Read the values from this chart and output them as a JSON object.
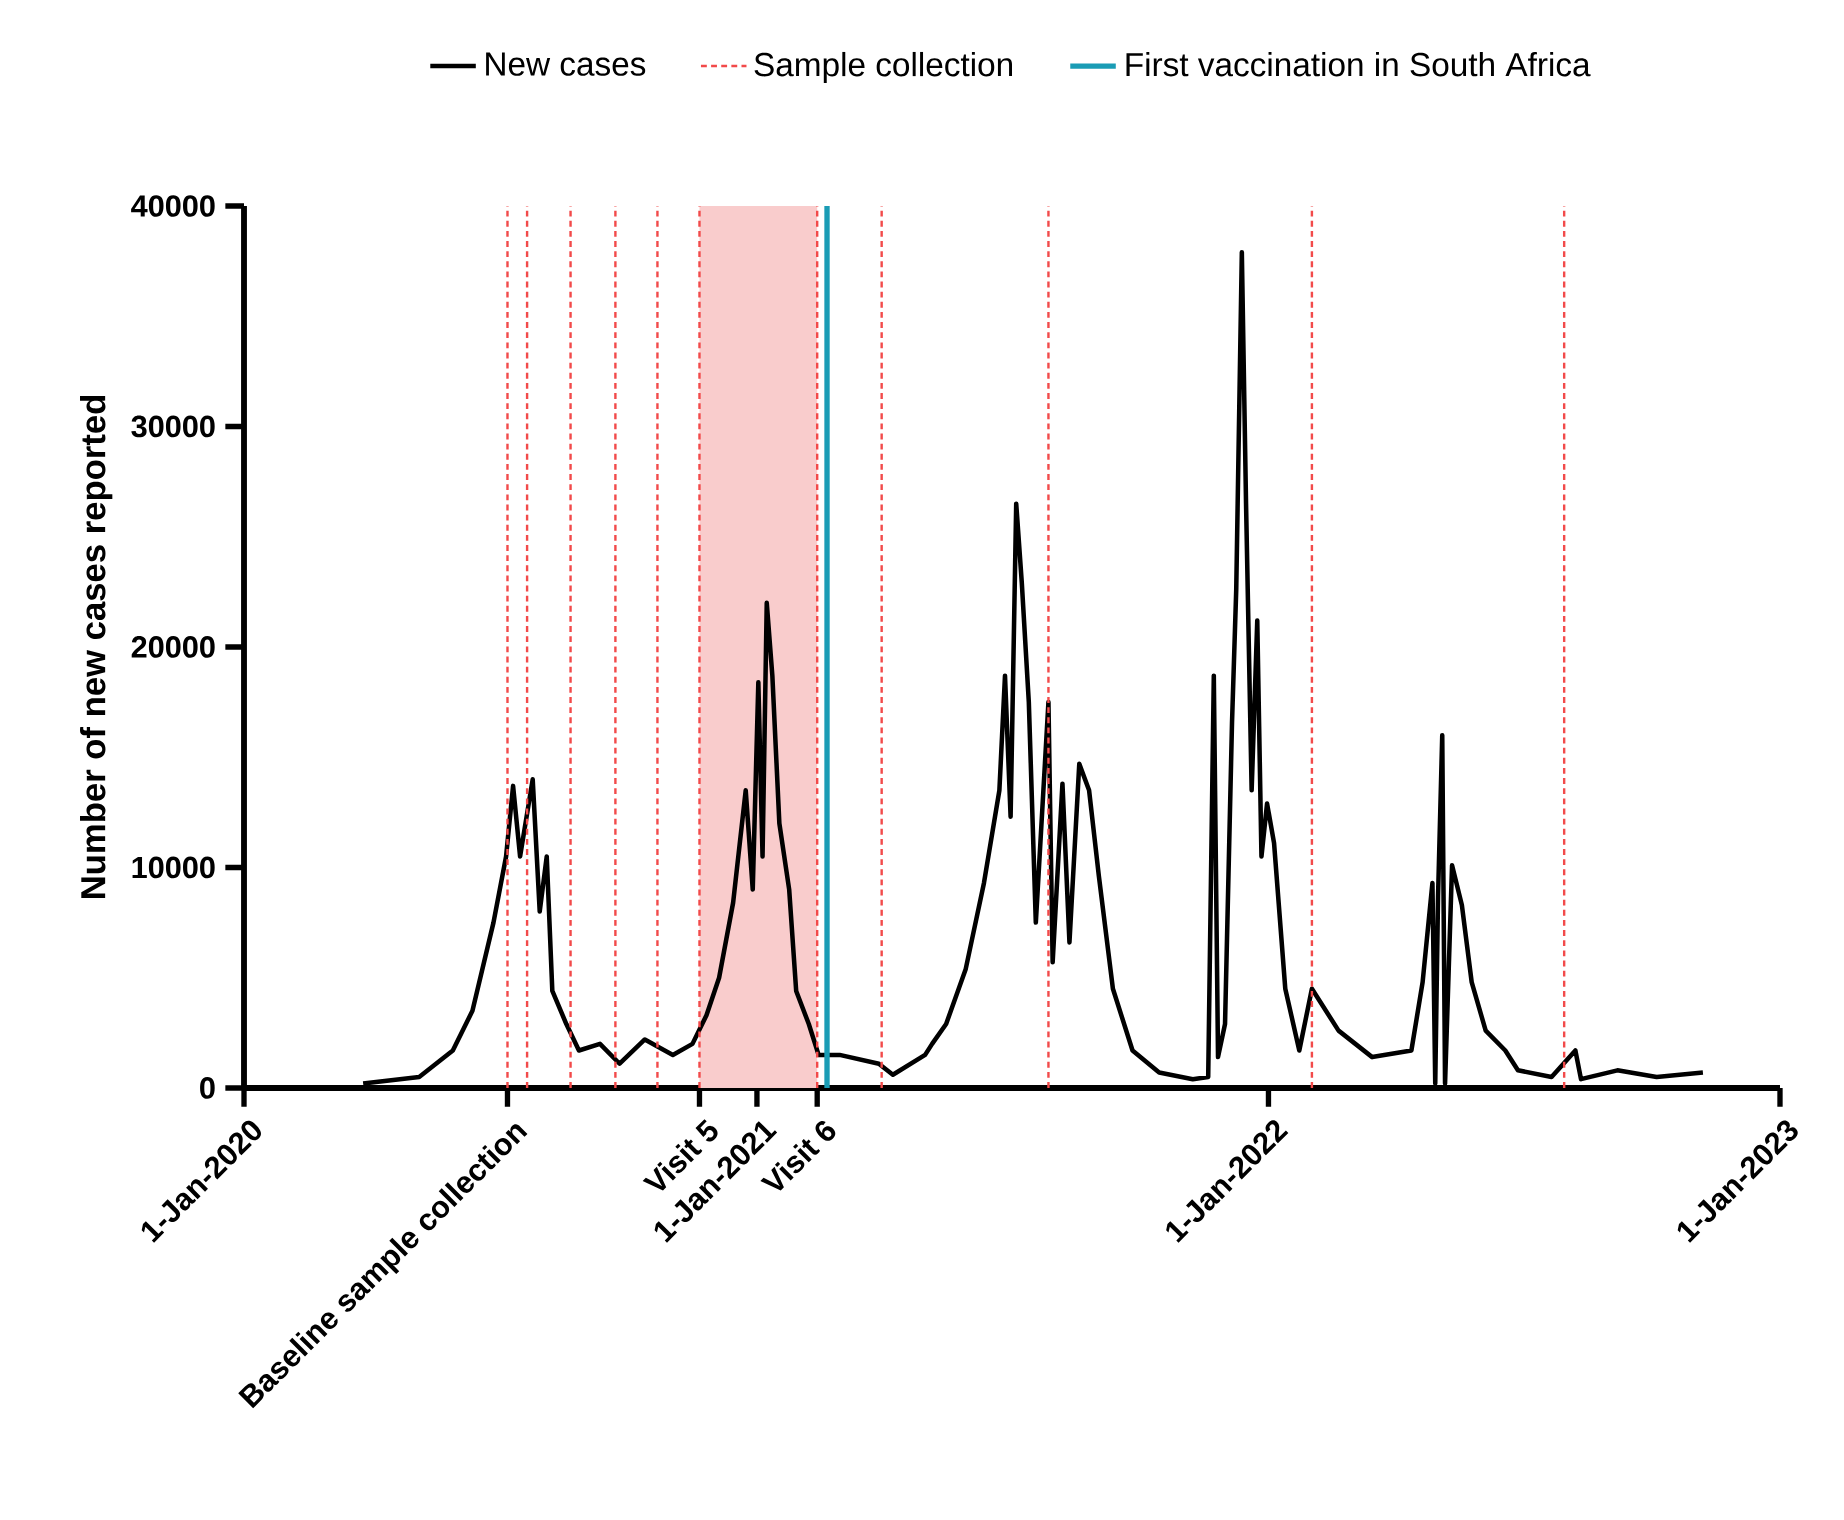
{
  "chart_data": {
    "type": "line",
    "ylabel": "Number of new cases reported",
    "xlim": [
      "2020-01-01",
      "2023-01-01"
    ],
    "ylim": [
      0,
      40000
    ],
    "xticks": [
      {
        "value": "2020-01-01",
        "label": "1-Jan-2020"
      },
      {
        "value": "2020-07-07",
        "label": "Baseline sample collection"
      },
      {
        "value": "2020-11-21",
        "label": "Visit 5"
      },
      {
        "value": "2021-01-01",
        "label": "1-Jan-2021"
      },
      {
        "value": "2021-02-13",
        "label": "Visit 6"
      },
      {
        "value": "2022-01-01",
        "label": "1-Jan-2022"
      },
      {
        "value": "2023-01-01",
        "label": "1-Jan-2023"
      }
    ],
    "yticks": [
      0,
      10000,
      20000,
      30000,
      40000
    ],
    "legend": "top",
    "series": [
      {
        "name": "New cases",
        "color": "#000000",
        "x": [
          "2020-03-26",
          "2020-05-05",
          "2020-05-29",
          "2020-06-12",
          "2020-06-27",
          "2020-07-06",
          "2020-07-11",
          "2020-07-16",
          "2020-07-25",
          "2020-07-30",
          "2020-08-04",
          "2020-08-08",
          "2020-08-18",
          "2020-08-27",
          "2020-09-11",
          "2020-09-25",
          "2020-10-13",
          "2020-11-02",
          "2020-11-16",
          "2020-11-26",
          "2020-12-05",
          "2020-12-15",
          "2020-12-24",
          "2020-12-29",
          "2021-01-02",
          "2021-01-05",
          "2021-01-08",
          "2021-01-12",
          "2021-01-17",
          "2021-01-24",
          "2021-01-29",
          "2021-02-07",
          "2021-02-14",
          "2021-03-01",
          "2021-03-29",
          "2021-04-08",
          "2021-05-01",
          "2021-05-06",
          "2021-05-16",
          "2021-05-30",
          "2021-06-12",
          "2021-06-23",
          "2021-06-27",
          "2021-07-01",
          "2021-07-05",
          "2021-07-09",
          "2021-07-14",
          "2021-07-19",
          "2021-07-28",
          "2021-07-31",
          "2021-08-07",
          "2021-08-12",
          "2021-08-19",
          "2021-08-26",
          "2021-09-02",
          "2021-09-12",
          "2021-09-26",
          "2021-10-15",
          "2021-11-08",
          "2021-11-19",
          "2021-11-23",
          "2021-11-26",
          "2021-12-01",
          "2021-12-06",
          "2021-12-09",
          "2021-12-13",
          "2021-12-16",
          "2021-12-20",
          "2021-12-24",
          "2021-12-27",
          "2021-12-31",
          "2022-01-05",
          "2022-01-13",
          "2022-01-23",
          "2022-02-01",
          "2022-02-20",
          "2022-03-16",
          "2022-04-13",
          "2022-04-21",
          "2022-04-28",
          "2022-04-30",
          "2022-05-02",
          "2022-05-05",
          "2022-05-07",
          "2022-05-12",
          "2022-05-19",
          "2022-05-26",
          "2022-06-05",
          "2022-06-19",
          "2022-06-28",
          "2022-07-22",
          "2022-08-08",
          "2022-08-12",
          "2022-09-07",
          "2022-10-05",
          "2022-11-07"
        ],
        "values": [
          200,
          500,
          1700,
          3500,
          7500,
          10500,
          13700,
          10500,
          14000,
          8000,
          10500,
          4400,
          2900,
          1700,
          2000,
          1100,
          2200,
          1500,
          2000,
          3300,
          5000,
          8400,
          13500,
          9000,
          18400,
          10500,
          22000,
          18700,
          12000,
          9000,
          4400,
          2900,
          1500,
          1500,
          1100,
          600,
          1500,
          2000,
          2900,
          5400,
          9300,
          13500,
          18700,
          12300,
          26500,
          22900,
          17500,
          7500,
          17500,
          5700,
          13800,
          6600,
          14700,
          13500,
          9600,
          4500,
          1700,
          700,
          400,
          500,
          18700,
          1400,
          2900,
          16600,
          22600,
          37900,
          26500,
          13500,
          21200,
          10500,
          12900,
          11100,
          4500,
          1700,
          4500,
          2600,
          1400,
          1700,
          4800,
          9300,
          200,
          8700,
          16000,
          200,
          10100,
          8300,
          4800,
          2600,
          1700,
          800,
          500,
          1700,
          400,
          800,
          500,
          700
        ]
      }
    ],
    "bands": [
      {
        "axis": "x",
        "from": "2020-11-21",
        "to": "2021-02-13",
        "color": "#f9cccc"
      }
    ],
    "ref_lines": [
      {
        "axis": "x",
        "value": "2020-07-07",
        "label": "Sample collection",
        "color": "#f24a4a",
        "line_style": "dashed"
      },
      {
        "axis": "x",
        "value": "2020-07-21",
        "color": "#f24a4a",
        "line_style": "dashed"
      },
      {
        "axis": "x",
        "value": "2020-08-21",
        "color": "#f24a4a",
        "line_style": "dashed"
      },
      {
        "axis": "x",
        "value": "2020-09-22",
        "color": "#f24a4a",
        "line_style": "dashed"
      },
      {
        "axis": "x",
        "value": "2020-10-22",
        "color": "#f24a4a",
        "line_style": "dashed"
      },
      {
        "axis": "x",
        "value": "2020-11-21",
        "color": "#f24a4a",
        "line_style": "dashed"
      },
      {
        "axis": "x",
        "value": "2021-02-13",
        "color": "#f24a4a",
        "line_style": "dashed"
      },
      {
        "axis": "x",
        "value": "2021-03-31",
        "color": "#f24a4a",
        "line_style": "dashed"
      },
      {
        "axis": "x",
        "value": "2021-07-28",
        "color": "#f24a4a",
        "line_style": "dashed"
      },
      {
        "axis": "x",
        "value": "2022-02-01",
        "color": "#f24a4a",
        "line_style": "dashed"
      },
      {
        "axis": "x",
        "value": "2022-07-31",
        "color": "#f24a4a",
        "line_style": "dashed"
      },
      {
        "axis": "x",
        "value": "2021-02-20",
        "label": "First vaccination in South Africa",
        "color": "#1a9cb5",
        "line_style": "solid"
      }
    ]
  }
}
